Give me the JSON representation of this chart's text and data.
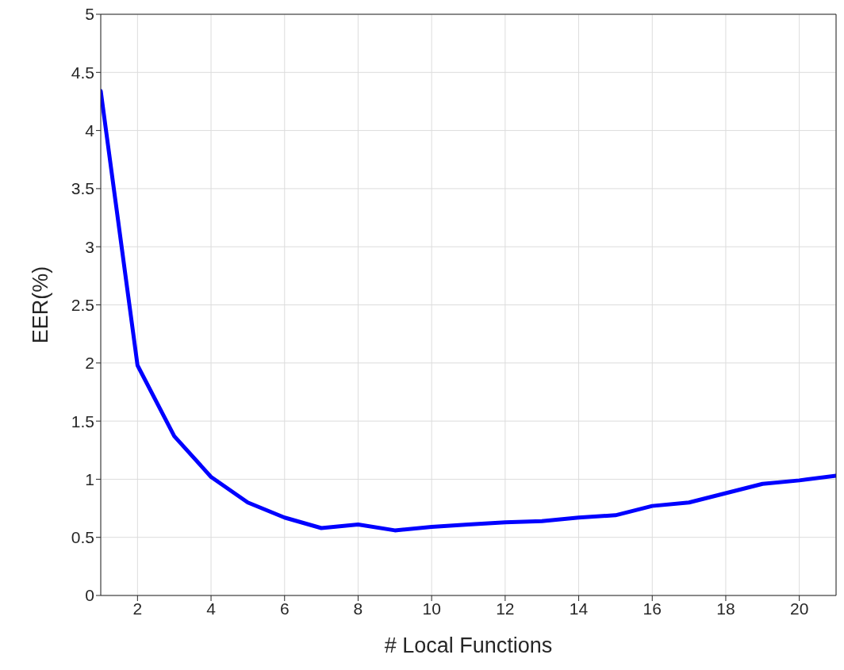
{
  "chart_data": {
    "type": "line",
    "xlabel": "# Local Functions",
    "ylabel": "EER(%)",
    "x": [
      1,
      2,
      3,
      4,
      5,
      6,
      7,
      8,
      9,
      10,
      11,
      12,
      13,
      14,
      15,
      16,
      17,
      18,
      19,
      20,
      21
    ],
    "series": [
      {
        "color": "#0000ff",
        "values": [
          4.34,
          1.98,
          1.37,
          1.02,
          0.8,
          0.67,
          0.58,
          0.61,
          0.56,
          0.59,
          0.61,
          0.63,
          0.64,
          0.67,
          0.69,
          0.77,
          0.8,
          0.88,
          0.96,
          0.99,
          1.03
        ]
      }
    ],
    "xlim": [
      1,
      21
    ],
    "xticks": [
      2,
      4,
      6,
      8,
      10,
      12,
      14,
      16,
      18,
      20
    ],
    "ylim": [
      0,
      5
    ],
    "yticks": [
      0,
      0.5,
      1,
      1.5,
      2,
      2.5,
      3,
      3.5,
      4,
      4.5,
      5
    ],
    "grid": true,
    "marker": "none",
    "line_style": "solid"
  }
}
